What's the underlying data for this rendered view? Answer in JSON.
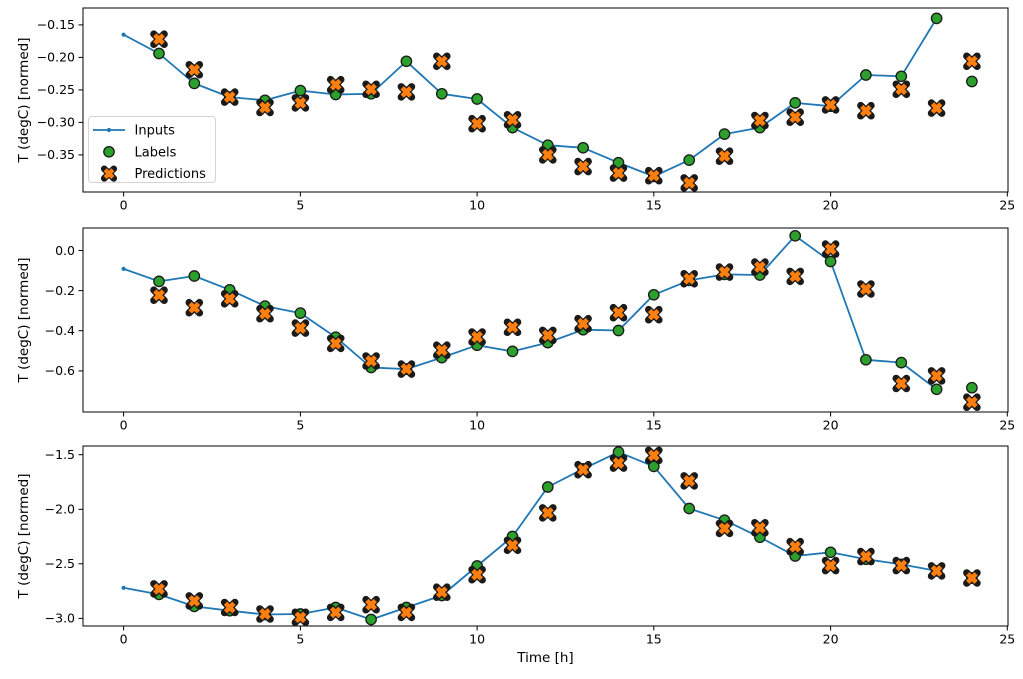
{
  "figure": {
    "kind": "matplotlib-style multi-panel time series figure",
    "background": "#ffffff",
    "xlabel": "Time [h]",
    "ylabel": "T (degC) [normed]",
    "legend": {
      "entries": [
        "Inputs",
        "Labels",
        "Predictions"
      ],
      "location": "left side of top panel"
    }
  },
  "colors": {
    "inputs_line": "#1f77b4",
    "labels_marker": "#2ca02c",
    "predictions_marker": "#ff7f0e",
    "marker_edge": "#1a1a1a",
    "axis": "#000000",
    "text": "#000000",
    "legend_border": "#d5d5d5",
    "legend_bg": "#ffffff"
  },
  "chart_data": [
    {
      "type": "line+scatter",
      "panel": 1,
      "ylabel": "T (degC) [normed]",
      "xlabel": "",
      "legend": true,
      "grid": false,
      "xlim": [
        -1.15,
        25.02
      ],
      "ylim": [
        -0.407,
        -0.124
      ],
      "xticks": {
        "values": [
          0,
          5,
          10,
          15,
          20,
          25
        ],
        "labels": [
          "0",
          "5",
          "10",
          "15",
          "20",
          "25"
        ]
      },
      "yticks": {
        "values": [
          -0.15,
          -0.2,
          -0.25,
          -0.3,
          -0.35
        ],
        "labels": [
          "−0.15",
          "−0.20",
          "−0.25",
          "−0.30",
          "−0.35"
        ]
      },
      "series": [
        {
          "name": "Inputs",
          "kind": "line",
          "marker": "point",
          "color": "#1f77b4",
          "x": [
            0,
            1,
            2,
            3,
            4,
            5,
            6,
            7,
            8,
            9,
            10,
            11,
            12,
            13,
            14,
            15,
            16,
            17,
            18,
            19,
            20,
            21,
            22,
            23
          ],
          "y": [
            -0.165,
            -0.194,
            -0.24,
            -0.261,
            -0.266,
            -0.251,
            -0.257,
            -0.256,
            -0.206,
            -0.256,
            -0.264,
            -0.308,
            -0.335,
            -0.339,
            -0.362,
            -0.383,
            -0.358,
            -0.318,
            -0.308,
            -0.27,
            -0.275,
            -0.227,
            -0.229,
            -0.14
          ]
        },
        {
          "name": "Labels",
          "kind": "scatter",
          "marker": "circle",
          "color": "#2ca02c",
          "x": [
            1,
            2,
            3,
            4,
            5,
            6,
            7,
            8,
            9,
            10,
            11,
            12,
            13,
            14,
            15,
            16,
            17,
            18,
            19,
            20,
            21,
            22,
            23,
            24
          ],
          "y": [
            -0.194,
            -0.24,
            -0.261,
            -0.266,
            -0.251,
            -0.257,
            -0.256,
            -0.206,
            -0.256,
            -0.264,
            -0.308,
            -0.335,
            -0.339,
            -0.362,
            -0.383,
            -0.358,
            -0.318,
            -0.308,
            -0.27,
            -0.275,
            -0.227,
            -0.229,
            -0.14,
            -0.237
          ]
        },
        {
          "name": "Predictions",
          "kind": "scatter",
          "marker": "X",
          "color": "#ff7f0e",
          "x": [
            1,
            2,
            3,
            4,
            5,
            6,
            7,
            8,
            9,
            10,
            11,
            12,
            13,
            14,
            15,
            16,
            17,
            18,
            19,
            20,
            21,
            22,
            23,
            24
          ],
          "y": [
            -0.172,
            -0.219,
            -0.261,
            -0.277,
            -0.27,
            -0.242,
            -0.249,
            -0.253,
            -0.206,
            -0.302,
            -0.296,
            -0.35,
            -0.368,
            -0.378,
            -0.382,
            -0.393,
            -0.352,
            -0.297,
            -0.292,
            -0.273,
            -0.282,
            -0.249,
            -0.278,
            -0.206
          ]
        }
      ]
    },
    {
      "type": "line+scatter",
      "panel": 2,
      "ylabel": "T (degC) [normed]",
      "xlabel": "",
      "legend": false,
      "grid": false,
      "xlim": [
        -1.15,
        25.02
      ],
      "ylim": [
        -0.805,
        0.112
      ],
      "xticks": {
        "values": [
          0,
          5,
          10,
          15,
          20,
          25
        ],
        "labels": [
          "0",
          "5",
          "10",
          "15",
          "20",
          "25"
        ]
      },
      "yticks": {
        "values": [
          0.0,
          -0.2,
          -0.4,
          -0.6
        ],
        "labels": [
          "0.0",
          "−0.2",
          "−0.4",
          "−0.6"
        ]
      },
      "series": [
        {
          "name": "Inputs",
          "kind": "line",
          "marker": "point",
          "color": "#1f77b4",
          "x": [
            0,
            1,
            2,
            3,
            4,
            5,
            6,
            7,
            8,
            9,
            10,
            11,
            12,
            13,
            14,
            15,
            16,
            17,
            18,
            19,
            20,
            21,
            22,
            23
          ],
          "y": [
            -0.092,
            -0.154,
            -0.127,
            -0.196,
            -0.277,
            -0.312,
            -0.432,
            -0.583,
            -0.591,
            -0.534,
            -0.472,
            -0.503,
            -0.459,
            -0.395,
            -0.399,
            -0.221,
            -0.149,
            -0.119,
            -0.122,
            0.073,
            -0.055,
            -0.545,
            -0.559,
            -0.692
          ]
        },
        {
          "name": "Labels",
          "kind": "scatter",
          "marker": "circle",
          "color": "#2ca02c",
          "x": [
            1,
            2,
            3,
            4,
            5,
            6,
            7,
            8,
            9,
            10,
            11,
            12,
            13,
            14,
            15,
            16,
            17,
            18,
            19,
            20,
            21,
            22,
            23,
            24
          ],
          "y": [
            -0.154,
            -0.127,
            -0.196,
            -0.277,
            -0.312,
            -0.432,
            -0.583,
            -0.591,
            -0.534,
            -0.472,
            -0.503,
            -0.459,
            -0.395,
            -0.399,
            -0.221,
            -0.149,
            -0.119,
            -0.122,
            0.073,
            -0.055,
            -0.545,
            -0.559,
            -0.692,
            -0.684
          ]
        },
        {
          "name": "Predictions",
          "kind": "scatter",
          "marker": "X",
          "color": "#ff7f0e",
          "x": [
            1,
            2,
            3,
            4,
            5,
            6,
            7,
            8,
            9,
            10,
            11,
            12,
            13,
            14,
            15,
            16,
            17,
            18,
            19,
            20,
            21,
            22,
            23,
            24
          ],
          "y": [
            -0.223,
            -0.285,
            -0.241,
            -0.315,
            -0.387,
            -0.463,
            -0.551,
            -0.591,
            -0.497,
            -0.431,
            -0.383,
            -0.423,
            -0.365,
            -0.31,
            -0.32,
            -0.141,
            -0.108,
            -0.083,
            -0.129,
            0.007,
            -0.192,
            -0.663,
            -0.625,
            -0.756
          ]
        }
      ]
    },
    {
      "type": "line+scatter",
      "panel": 3,
      "ylabel": "T (degC) [normed]",
      "xlabel": "Time [h]",
      "legend": false,
      "grid": false,
      "xlim": [
        -1.15,
        25.02
      ],
      "ylim": [
        -3.07,
        -1.42
      ],
      "xticks": {
        "values": [
          0,
          5,
          10,
          15,
          20,
          25
        ],
        "labels": [
          "0",
          "5",
          "10",
          "15",
          "20",
          "25"
        ]
      },
      "yticks": {
        "values": [
          -1.5,
          -2.0,
          -2.5,
          -3.0
        ],
        "labels": [
          "−1.5",
          "−2.0",
          "−2.5",
          "−3.0"
        ]
      },
      "series": [
        {
          "name": "Inputs",
          "kind": "line",
          "marker": "point",
          "color": "#1f77b4",
          "x": [
            0,
            1,
            2,
            3,
            4,
            5,
            6,
            7,
            8,
            9,
            10,
            11,
            12,
            13,
            14,
            15,
            16,
            17,
            18,
            19,
            20,
            21,
            22,
            23
          ],
          "y": [
            -2.72,
            -2.78,
            -2.89,
            -2.93,
            -2.965,
            -2.96,
            -2.9,
            -3.01,
            -2.9,
            -2.79,
            -2.52,
            -2.25,
            -1.796,
            -1.63,
            -1.476,
            -1.607,
            -1.993,
            -2.1,
            -2.257,
            -2.428,
            -2.394,
            -2.458,
            -2.505,
            -2.565
          ]
        },
        {
          "name": "Labels",
          "kind": "scatter",
          "marker": "circle",
          "color": "#2ca02c",
          "x": [
            1,
            2,
            3,
            4,
            5,
            6,
            7,
            8,
            9,
            10,
            11,
            12,
            13,
            14,
            15,
            16,
            17,
            18,
            19,
            20,
            21,
            22,
            23,
            24
          ],
          "y": [
            -2.78,
            -2.89,
            -2.93,
            -2.965,
            -2.96,
            -2.9,
            -3.01,
            -2.9,
            -2.79,
            -2.52,
            -2.25,
            -1.796,
            -1.63,
            -1.476,
            -1.607,
            -1.993,
            -2.1,
            -2.257,
            -2.428,
            -2.394,
            -2.458,
            -2.505,
            -2.565,
            -2.63
          ]
        },
        {
          "name": "Predictions",
          "kind": "scatter",
          "marker": "X",
          "color": "#ff7f0e",
          "x": [
            1,
            2,
            3,
            4,
            5,
            6,
            7,
            8,
            9,
            10,
            11,
            12,
            13,
            14,
            15,
            16,
            17,
            18,
            19,
            20,
            21,
            22,
            23,
            24
          ],
          "y": [
            -2.73,
            -2.84,
            -2.9,
            -2.96,
            -2.99,
            -2.945,
            -2.875,
            -2.945,
            -2.76,
            -2.6,
            -2.33,
            -2.033,
            -1.637,
            -1.577,
            -1.506,
            -1.74,
            -2.175,
            -2.17,
            -2.343,
            -2.516,
            -2.434,
            -2.516,
            -2.565,
            -2.63
          ]
        }
      ]
    }
  ]
}
